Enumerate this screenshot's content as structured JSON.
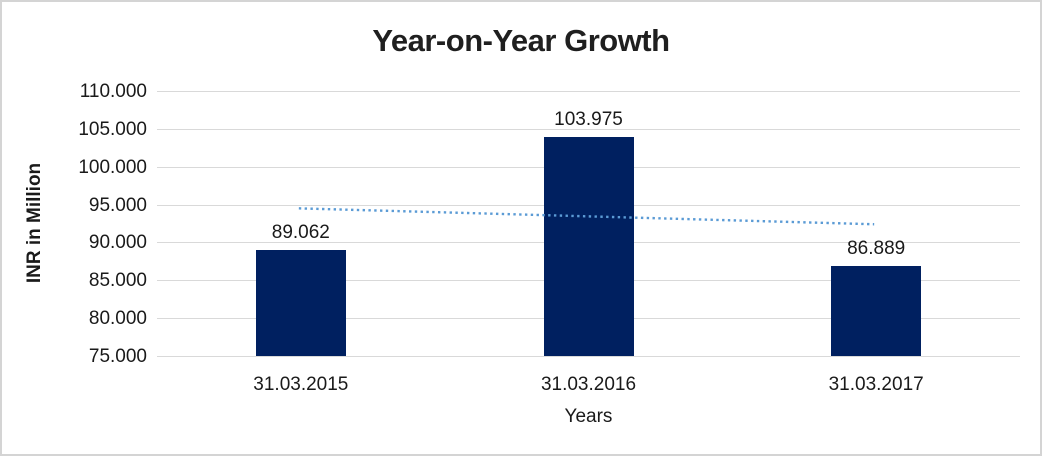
{
  "chart_data": {
    "type": "bar",
    "title": "Year-on-Year Growth",
    "xlabel": "Years",
    "ylabel": "INR in Million",
    "categories": [
      "31.03.2015",
      "31.03.2016",
      "31.03.2017"
    ],
    "values": [
      89.062,
      103.975,
      86.889
    ],
    "data_labels": [
      "89.062",
      "103.975",
      "86.889"
    ],
    "ylim": [
      75,
      110
    ],
    "ytick_step": 5,
    "ytick_labels": [
      "75.000",
      "80.000",
      "85.000",
      "90.000",
      "95.000",
      "100.000",
      "105.000",
      "110.000"
    ],
    "grid": true,
    "legend": "none",
    "bar_color": "#002060",
    "grid_color": "#d9d9d9",
    "text_color": "#1a1a1a",
    "trendline": {
      "type": "linear",
      "style": "dotted",
      "color": "#5b9bd5",
      "start_value": 94.5,
      "end_value": 92.4
    }
  }
}
